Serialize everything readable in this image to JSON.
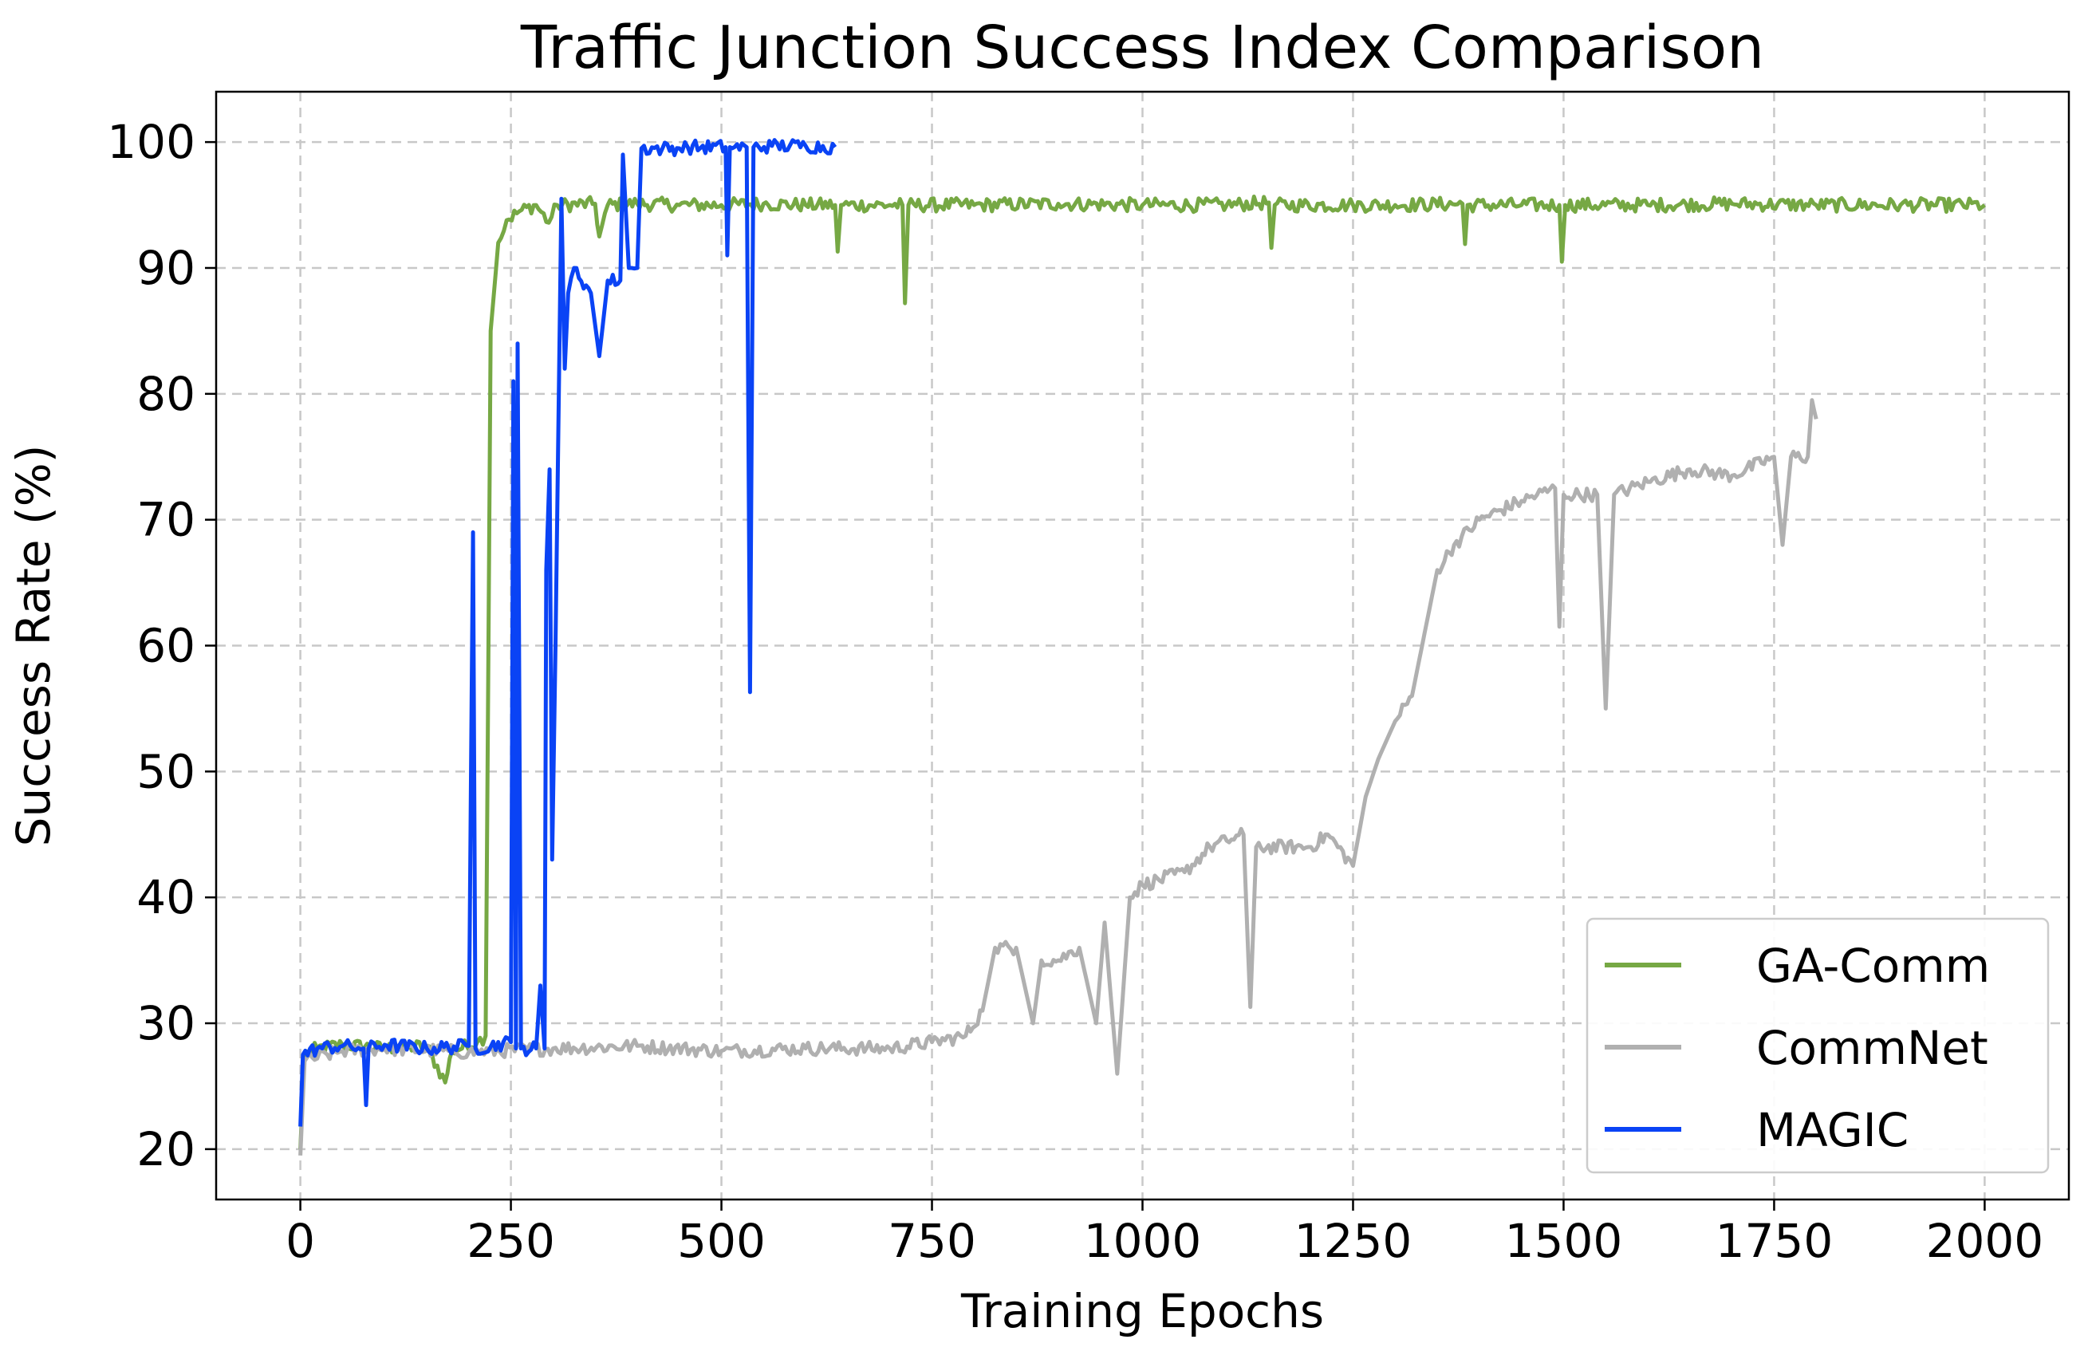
{
  "chart_data": {
    "type": "line",
    "title": "Traffic Junction Success Index Comparison",
    "xlabel": "Training Epochs",
    "ylabel": "Success Rate (%)",
    "xlim": [
      -100,
      2100
    ],
    "ylim": [
      16,
      104
    ],
    "xticks": [
      0,
      250,
      500,
      750,
      1000,
      1250,
      1500,
      1750,
      2000
    ],
    "yticks": [
      20,
      30,
      40,
      50,
      60,
      70,
      80,
      90,
      100
    ],
    "grid": true,
    "legend_position": "lower-right",
    "series": [
      {
        "name": "GA-Comm",
        "color": "#76a844",
        "points": [
          [
            0,
            20
          ],
          [
            5,
            27.5
          ],
          [
            20,
            28
          ],
          [
            50,
            28.3
          ],
          [
            100,
            28
          ],
          [
            150,
            28.2
          ],
          [
            172,
            25.3
          ],
          [
            180,
            27.8
          ],
          [
            210,
            28.5
          ],
          [
            220,
            29
          ],
          [
            226,
            85
          ],
          [
            235,
            92
          ],
          [
            245,
            93.8
          ],
          [
            260,
            94.5
          ],
          [
            280,
            95
          ],
          [
            295,
            93.6
          ],
          [
            305,
            95
          ],
          [
            350,
            95.1
          ],
          [
            355,
            92.5
          ],
          [
            365,
            95
          ],
          [
            400,
            95.1
          ],
          [
            450,
            95
          ],
          [
            500,
            95
          ],
          [
            550,
            95.1
          ],
          [
            600,
            95
          ],
          [
            635,
            95
          ],
          [
            638,
            91.3
          ],
          [
            642,
            95
          ],
          [
            700,
            95
          ],
          [
            715,
            95
          ],
          [
            718,
            87.2
          ],
          [
            722,
            95
          ],
          [
            800,
            95
          ],
          [
            900,
            95.1
          ],
          [
            1000,
            95
          ],
          [
            1100,
            95
          ],
          [
            1150,
            95.2
          ],
          [
            1153,
            91.6
          ],
          [
            1157,
            95
          ],
          [
            1250,
            95
          ],
          [
            1300,
            95
          ],
          [
            1380,
            95.1
          ],
          [
            1383,
            91.9
          ],
          [
            1386,
            95
          ],
          [
            1450,
            95
          ],
          [
            1495,
            95
          ],
          [
            1498,
            90.5
          ],
          [
            1502,
            95
          ],
          [
            1600,
            95
          ],
          [
            1700,
            95.1
          ],
          [
            1800,
            95
          ],
          [
            1900,
            95
          ],
          [
            2000,
            95
          ]
        ]
      },
      {
        "name": "CommNet",
        "color": "#b0b0b0",
        "points": [
          [
            0,
            19.5
          ],
          [
            5,
            27
          ],
          [
            50,
            27.8
          ],
          [
            100,
            28
          ],
          [
            200,
            27.7
          ],
          [
            300,
            28
          ],
          [
            400,
            28.2
          ],
          [
            500,
            27.8
          ],
          [
            600,
            28
          ],
          [
            700,
            28
          ],
          [
            750,
            28.5
          ],
          [
            790,
            29
          ],
          [
            810,
            31
          ],
          [
            825,
            36
          ],
          [
            850,
            36
          ],
          [
            860,
            33
          ],
          [
            870,
            30
          ],
          [
            880,
            35
          ],
          [
            900,
            35
          ],
          [
            925,
            36
          ],
          [
            945,
            30
          ],
          [
            955,
            38
          ],
          [
            970,
            26
          ],
          [
            985,
            40
          ],
          [
            1000,
            41
          ],
          [
            1050,
            42
          ],
          [
            1080,
            44
          ],
          [
            1100,
            44.5
          ],
          [
            1120,
            45
          ],
          [
            1128,
            31.3
          ],
          [
            1135,
            44
          ],
          [
            1200,
            44
          ],
          [
            1220,
            45
          ],
          [
            1250,
            42.5
          ],
          [
            1265,
            48
          ],
          [
            1280,
            51
          ],
          [
            1300,
            54
          ],
          [
            1320,
            56
          ],
          [
            1335,
            61
          ],
          [
            1350,
            66
          ],
          [
            1370,
            68
          ],
          [
            1400,
            70
          ],
          [
            1450,
            71.5
          ],
          [
            1490,
            72.5
          ],
          [
            1495,
            61.5
          ],
          [
            1500,
            72
          ],
          [
            1540,
            72
          ],
          [
            1550,
            55
          ],
          [
            1560,
            72
          ],
          [
            1600,
            73
          ],
          [
            1650,
            74
          ],
          [
            1700,
            73.5
          ],
          [
            1750,
            75
          ],
          [
            1760,
            68
          ],
          [
            1770,
            75
          ],
          [
            1790,
            75
          ],
          [
            1795,
            79.5
          ],
          [
            1800,
            78
          ]
        ]
      },
      {
        "name": "MAGIC",
        "color": "#0a43f5",
        "points": [
          [
            0,
            21.8
          ],
          [
            3,
            27.5
          ],
          [
            20,
            28
          ],
          [
            50,
            28.2
          ],
          [
            75,
            28
          ],
          [
            78,
            23.5
          ],
          [
            81,
            28
          ],
          [
            100,
            28.3
          ],
          [
            150,
            28
          ],
          [
            200,
            28.2
          ],
          [
            205,
            69
          ],
          [
            208,
            28
          ],
          [
            250,
            28.5
          ],
          [
            253,
            81
          ],
          [
            256,
            28
          ],
          [
            258,
            84
          ],
          [
            262,
            28
          ],
          [
            280,
            28
          ],
          [
            285,
            33
          ],
          [
            290,
            28
          ],
          [
            292,
            66
          ],
          [
            296,
            74
          ],
          [
            299,
            43
          ],
          [
            303,
            60
          ],
          [
            310,
            95.5
          ],
          [
            314,
            82
          ],
          [
            318,
            88
          ],
          [
            325,
            90
          ],
          [
            345,
            88
          ],
          [
            355,
            83
          ],
          [
            365,
            89
          ],
          [
            380,
            89
          ],
          [
            383,
            99
          ],
          [
            390,
            90
          ],
          [
            400,
            90
          ],
          [
            405,
            99.5
          ],
          [
            430,
            99.5
          ],
          [
            450,
            99.5
          ],
          [
            460,
            99.6
          ],
          [
            505,
            99.6
          ],
          [
            507,
            91
          ],
          [
            510,
            99.6
          ],
          [
            530,
            99.6
          ],
          [
            534,
            56.3
          ],
          [
            538,
            99.6
          ],
          [
            560,
            99.7
          ],
          [
            600,
            99.7
          ],
          [
            635,
            99.6
          ]
        ]
      }
    ]
  }
}
